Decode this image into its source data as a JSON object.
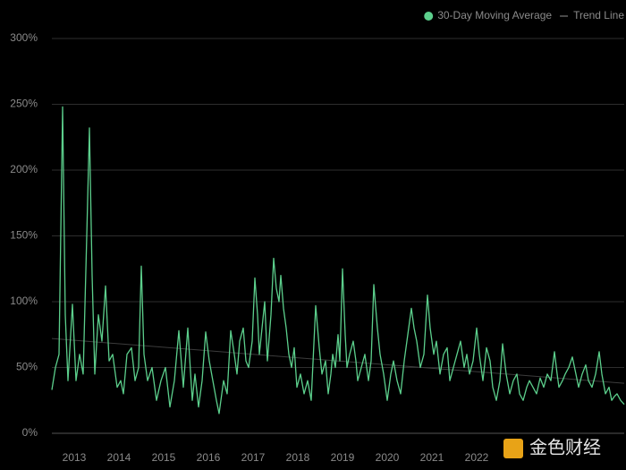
{
  "chart_data": {
    "type": "line",
    "legend": "top-right",
    "grid": true,
    "watermark": "金色财经",
    "xlim": [
      2013,
      2025.8
    ],
    "ylim": [
      0,
      300
    ],
    "yticks": [
      {
        "value": 0,
        "label": "0%"
      },
      {
        "value": 50,
        "label": "50%"
      },
      {
        "value": 100,
        "label": "100%"
      },
      {
        "value": 150,
        "label": "150%"
      },
      {
        "value": 200,
        "label": "200%"
      },
      {
        "value": 250,
        "label": "250%"
      },
      {
        "value": 300,
        "label": "300%"
      }
    ],
    "xticks": [
      {
        "value": 2013.5,
        "label": "2013"
      },
      {
        "value": 2014.5,
        "label": "2014"
      },
      {
        "value": 2015.5,
        "label": "2015"
      },
      {
        "value": 2016.5,
        "label": "2016"
      },
      {
        "value": 2017.5,
        "label": "2017"
      },
      {
        "value": 2018.5,
        "label": "2018"
      },
      {
        "value": 2019.5,
        "label": "2019"
      },
      {
        "value": 2020.5,
        "label": "2020"
      },
      {
        "value": 2021.5,
        "label": "2021"
      },
      {
        "value": 2022.5,
        "label": "2022"
      }
    ],
    "series": [
      {
        "name": "30-Day Moving Average",
        "color": "#5ccf8c",
        "x": [
          2013.0,
          2013.08,
          2013.16,
          2013.24,
          2013.3,
          2013.36,
          2013.46,
          2013.54,
          2013.62,
          2013.7,
          2013.78,
          2013.84,
          2013.9,
          2013.96,
          2014.04,
          2014.12,
          2014.2,
          2014.28,
          2014.36,
          2014.46,
          2014.54,
          2014.6,
          2014.68,
          2014.78,
          2014.86,
          2014.94,
          2015.0,
          2015.06,
          2015.14,
          2015.24,
          2015.34,
          2015.44,
          2015.54,
          2015.64,
          2015.74,
          2015.84,
          2015.94,
          2016.04,
          2016.14,
          2016.2,
          2016.28,
          2016.36,
          2016.44,
          2016.52,
          2016.6,
          2016.68,
          2016.74,
          2016.84,
          2016.92,
          2017.0,
          2017.08,
          2017.14,
          2017.2,
          2017.28,
          2017.34,
          2017.4,
          2017.48,
          2017.54,
          2017.6,
          2017.64,
          2017.7,
          2017.76,
          2017.82,
          2017.9,
          2017.96,
          2018.02,
          2018.08,
          2018.12,
          2018.18,
          2018.24,
          2018.3,
          2018.36,
          2018.42,
          2018.48,
          2018.56,
          2018.64,
          2018.72,
          2018.8,
          2018.9,
          2018.98,
          2019.04,
          2019.12,
          2019.18,
          2019.24,
          2019.28,
          2019.34,
          2019.4,
          2019.44,
          2019.5,
          2019.56,
          2019.6,
          2019.66,
          2019.74,
          2019.8,
          2019.84,
          2019.92,
          2020.0,
          2020.08,
          2020.14,
          2020.2,
          2020.28,
          2020.34,
          2020.42,
          2020.5,
          2020.58,
          2020.64,
          2020.72,
          2020.8,
          2020.88,
          2020.96,
          2021.04,
          2021.1,
          2021.16,
          2021.24,
          2021.32,
          2021.4,
          2021.46,
          2021.54,
          2021.6,
          2021.68,
          2021.76,
          2021.84,
          2021.9,
          2021.98,
          2022.06,
          2022.14,
          2022.22,
          2022.28,
          2022.34,
          2022.42,
          2022.5,
          2022.56,
          2022.64,
          2022.72,
          2022.8,
          2022.86,
          2022.94,
          2023.02,
          2023.08,
          2023.16,
          2023.24,
          2023.32,
          2023.4,
          2023.46,
          2023.54,
          2023.62,
          2023.68,
          2023.76,
          2023.84,
          2023.92,
          2024.0,
          2024.08,
          2024.16,
          2024.24,
          2024.3,
          2024.34,
          2024.42,
          2024.48,
          2024.56,
          2024.64,
          2024.72,
          2024.78,
          2024.86,
          2024.94,
          2025.0,
          2025.08,
          2025.16,
          2025.24,
          2025.3,
          2025.38,
          2025.46,
          2025.52,
          2025.58,
          2025.64,
          2025.72,
          2025.8
        ],
        "values": [
          33,
          50,
          60,
          248,
          90,
          40,
          98,
          40,
          60,
          45,
          150,
          232,
          120,
          45,
          90,
          70,
          112,
          55,
          60,
          35,
          40,
          30,
          60,
          65,
          40,
          50,
          127,
          60,
          40,
          50,
          25,
          40,
          50,
          20,
          40,
          78,
          35,
          80,
          25,
          45,
          20,
          40,
          77,
          55,
          40,
          25,
          15,
          40,
          30,
          78,
          60,
          45,
          70,
          80,
          55,
          50,
          70,
          118,
          90,
          60,
          80,
          100,
          55,
          90,
          133,
          110,
          100,
          120,
          95,
          80,
          60,
          50,
          65,
          35,
          45,
          30,
          40,
          25,
          97,
          65,
          45,
          55,
          30,
          45,
          60,
          50,
          75,
          55,
          125,
          75,
          50,
          60,
          70,
          55,
          40,
          50,
          60,
          40,
          55,
          113,
          80,
          60,
          45,
          25,
          45,
          55,
          40,
          30,
          55,
          75,
          95,
          80,
          70,
          50,
          60,
          105,
          80,
          60,
          70,
          45,
          60,
          65,
          40,
          50,
          60,
          70,
          50,
          60,
          45,
          55,
          80,
          60,
          40,
          65,
          55,
          35,
          25,
          40,
          68,
          45,
          30,
          40,
          45,
          30,
          25,
          35,
          40,
          35,
          30,
          42,
          35,
          45,
          40,
          62,
          45,
          35,
          40,
          45,
          50,
          58,
          45,
          35,
          45,
          52,
          40,
          35,
          45,
          62,
          45,
          30,
          35,
          25,
          28,
          30,
          25,
          22
        ]
      },
      {
        "name": "Trend Line",
        "color": "#3c3c3c",
        "x": [
          2013,
          2025.8
        ],
        "values": [
          72,
          38
        ]
      }
    ]
  }
}
